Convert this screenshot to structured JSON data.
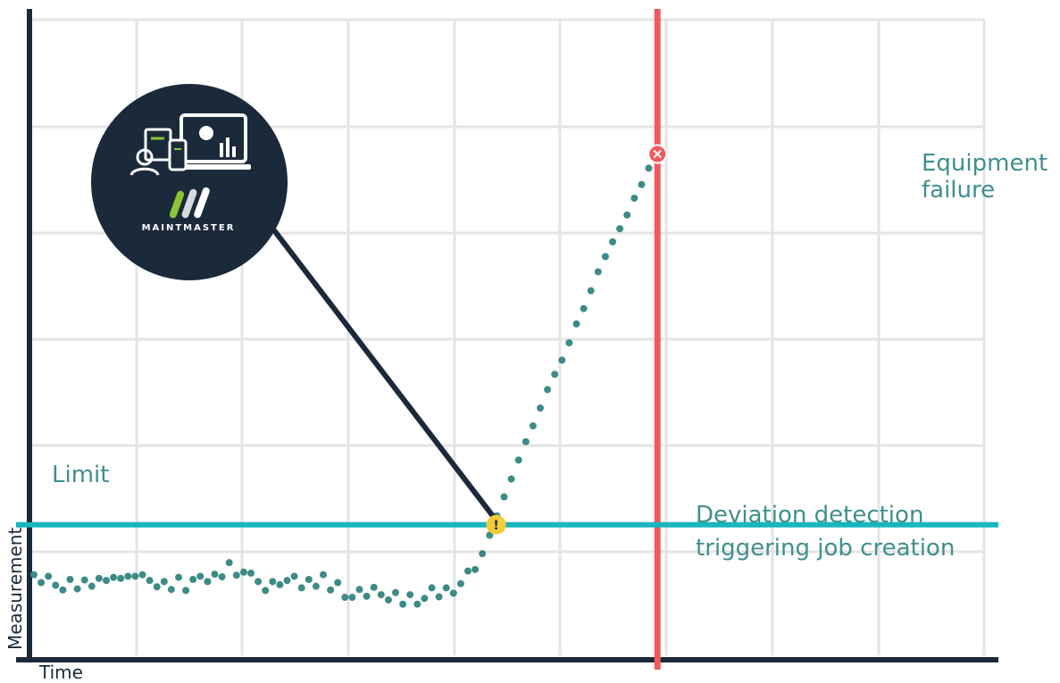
{
  "chart_data": {
    "type": "scatter",
    "title": "",
    "xlabel": "Time",
    "ylabel": "Measurement",
    "grid": true,
    "series": [
      {
        "color": "#3d8b86",
        "points": [
          [
            0.0,
            1.55
          ],
          [
            0.1,
            1.4
          ],
          [
            0.2,
            1.52
          ],
          [
            0.3,
            1.35
          ],
          [
            0.4,
            1.26
          ],
          [
            0.5,
            1.46
          ],
          [
            0.6,
            1.28
          ],
          [
            0.7,
            1.45
          ],
          [
            0.8,
            1.33
          ],
          [
            0.9,
            1.48
          ],
          [
            1.0,
            1.44
          ],
          [
            1.1,
            1.5
          ],
          [
            1.2,
            1.48
          ],
          [
            1.3,
            1.52
          ],
          [
            1.4,
            1.52
          ],
          [
            1.5,
            1.55
          ],
          [
            1.6,
            1.44
          ],
          [
            1.7,
            1.32
          ],
          [
            1.8,
            1.42
          ],
          [
            1.9,
            1.27
          ],
          [
            2.0,
            1.5
          ],
          [
            2.1,
            1.25
          ],
          [
            2.2,
            1.46
          ],
          [
            2.3,
            1.52
          ],
          [
            2.4,
            1.42
          ],
          [
            2.5,
            1.56
          ],
          [
            2.6,
            1.51
          ],
          [
            2.7,
            1.78
          ],
          [
            2.8,
            1.54
          ],
          [
            2.9,
            1.6
          ],
          [
            3.0,
            1.58
          ],
          [
            3.1,
            1.42
          ],
          [
            3.2,
            1.25
          ],
          [
            3.3,
            1.42
          ],
          [
            3.4,
            1.36
          ],
          [
            3.5,
            1.44
          ],
          [
            3.6,
            1.52
          ],
          [
            3.7,
            1.3
          ],
          [
            3.8,
            1.46
          ],
          [
            3.9,
            1.33
          ],
          [
            4.0,
            1.55
          ],
          [
            4.1,
            1.26
          ],
          [
            4.2,
            1.4
          ],
          [
            4.3,
            1.12
          ],
          [
            4.4,
            1.12
          ],
          [
            4.5,
            1.27
          ],
          [
            4.6,
            1.14
          ],
          [
            4.7,
            1.31
          ],
          [
            4.8,
            1.17
          ],
          [
            4.9,
            1.07
          ],
          [
            5.0,
            1.21
          ],
          [
            5.1,
            0.99
          ],
          [
            5.2,
            1.17
          ],
          [
            5.3,
            0.99
          ],
          [
            5.4,
            1.1
          ],
          [
            5.5,
            1.3
          ],
          [
            5.6,
            1.13
          ],
          [
            5.7,
            1.3
          ],
          [
            5.8,
            1.2
          ],
          [
            5.9,
            1.38
          ],
          [
            6.0,
            1.62
          ],
          [
            6.1,
            1.65
          ],
          [
            6.2,
            1.95
          ],
          [
            6.3,
            2.3
          ],
          [
            6.4,
            2.67
          ],
          [
            6.5,
            3.03
          ],
          [
            6.6,
            3.37
          ],
          [
            6.7,
            3.73
          ],
          [
            6.8,
            4.08
          ],
          [
            6.9,
            4.38
          ],
          [
            7.0,
            4.72
          ],
          [
            7.1,
            5.07
          ],
          [
            7.2,
            5.36
          ],
          [
            7.3,
            5.63
          ],
          [
            7.4,
            5.96
          ],
          [
            7.5,
            6.32
          ],
          [
            7.6,
            6.61
          ],
          [
            7.7,
            6.95
          ],
          [
            7.8,
            7.31
          ],
          [
            7.9,
            7.6
          ],
          [
            8.0,
            7.88
          ],
          [
            8.1,
            8.13
          ],
          [
            8.2,
            8.39
          ],
          [
            8.3,
            8.71
          ],
          [
            8.4,
            8.97
          ],
          [
            8.5,
            9.28
          ]
        ]
      }
    ],
    "threshold": {
      "label": "Limit",
      "y": 2.5,
      "color": "#17b6bd"
    },
    "failure_line": {
      "x": 8.62,
      "color": "#f05a5f"
    },
    "annotations": [
      {
        "id": "deviation",
        "x": 6.39,
        "y": 2.5,
        "text_lines": [
          "Deviation detection",
          "triggering job creation"
        ]
      },
      {
        "id": "failure",
        "x": 8.62,
        "y": 9.55,
        "text_lines": [
          "Equipment",
          "failure"
        ]
      }
    ],
    "brand": {
      "name": "MAINTMASTER"
    },
    "xlim": [
      0,
      9.5
    ],
    "ylim": [
      0,
      12.45
    ]
  }
}
